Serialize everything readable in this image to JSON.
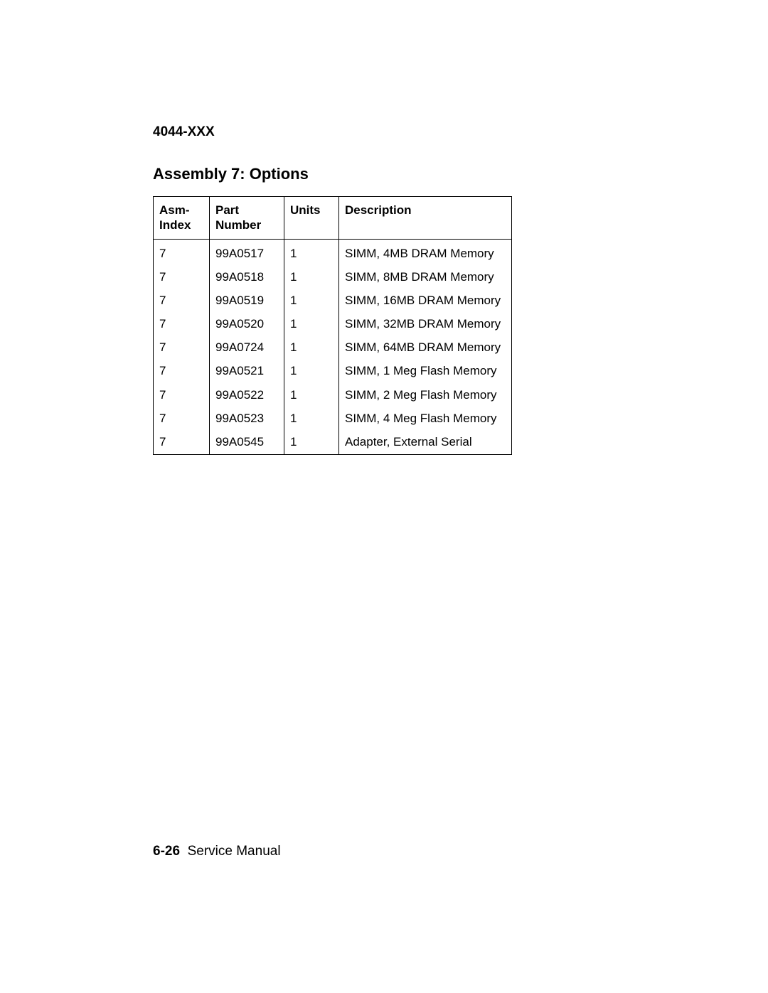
{
  "header": {
    "model": "4044-XXX"
  },
  "section": {
    "title": "Assembly 7: Options"
  },
  "table": {
    "columns": {
      "asm": "Asm-\nIndex",
      "part": "Part\nNumber",
      "units": "Units",
      "desc": "Description"
    },
    "rows": [
      {
        "asm": "7",
        "part": "99A0517",
        "units": "1",
        "desc": "SIMM, 4MB DRAM Memory"
      },
      {
        "asm": "7",
        "part": "99A0518",
        "units": "1",
        "desc": "SIMM, 8MB DRAM Memory"
      },
      {
        "asm": "7",
        "part": "99A0519",
        "units": "1",
        "desc": "SIMM, 16MB DRAM Memory"
      },
      {
        "asm": "7",
        "part": "99A0520",
        "units": "1",
        "desc": "SIMM, 32MB DRAM Memory"
      },
      {
        "asm": "7",
        "part": "99A0724",
        "units": "1",
        "desc": "SIMM, 64MB DRAM Memory"
      },
      {
        "asm": "7",
        "part": "99A0521",
        "units": "1",
        "desc": "SIMM, 1 Meg Flash Memory"
      },
      {
        "asm": "7",
        "part": "99A0522",
        "units": "1",
        "desc": "SIMM, 2 Meg Flash Memory"
      },
      {
        "asm": "7",
        "part": "99A0523",
        "units": "1",
        "desc": "SIMM, 4 Meg Flash Memory"
      },
      {
        "asm": "7",
        "part": "99A0545",
        "units": "1",
        "desc": "Adapter, External Serial"
      }
    ]
  },
  "footer": {
    "page": "6-26",
    "label": "Service Manual"
  }
}
